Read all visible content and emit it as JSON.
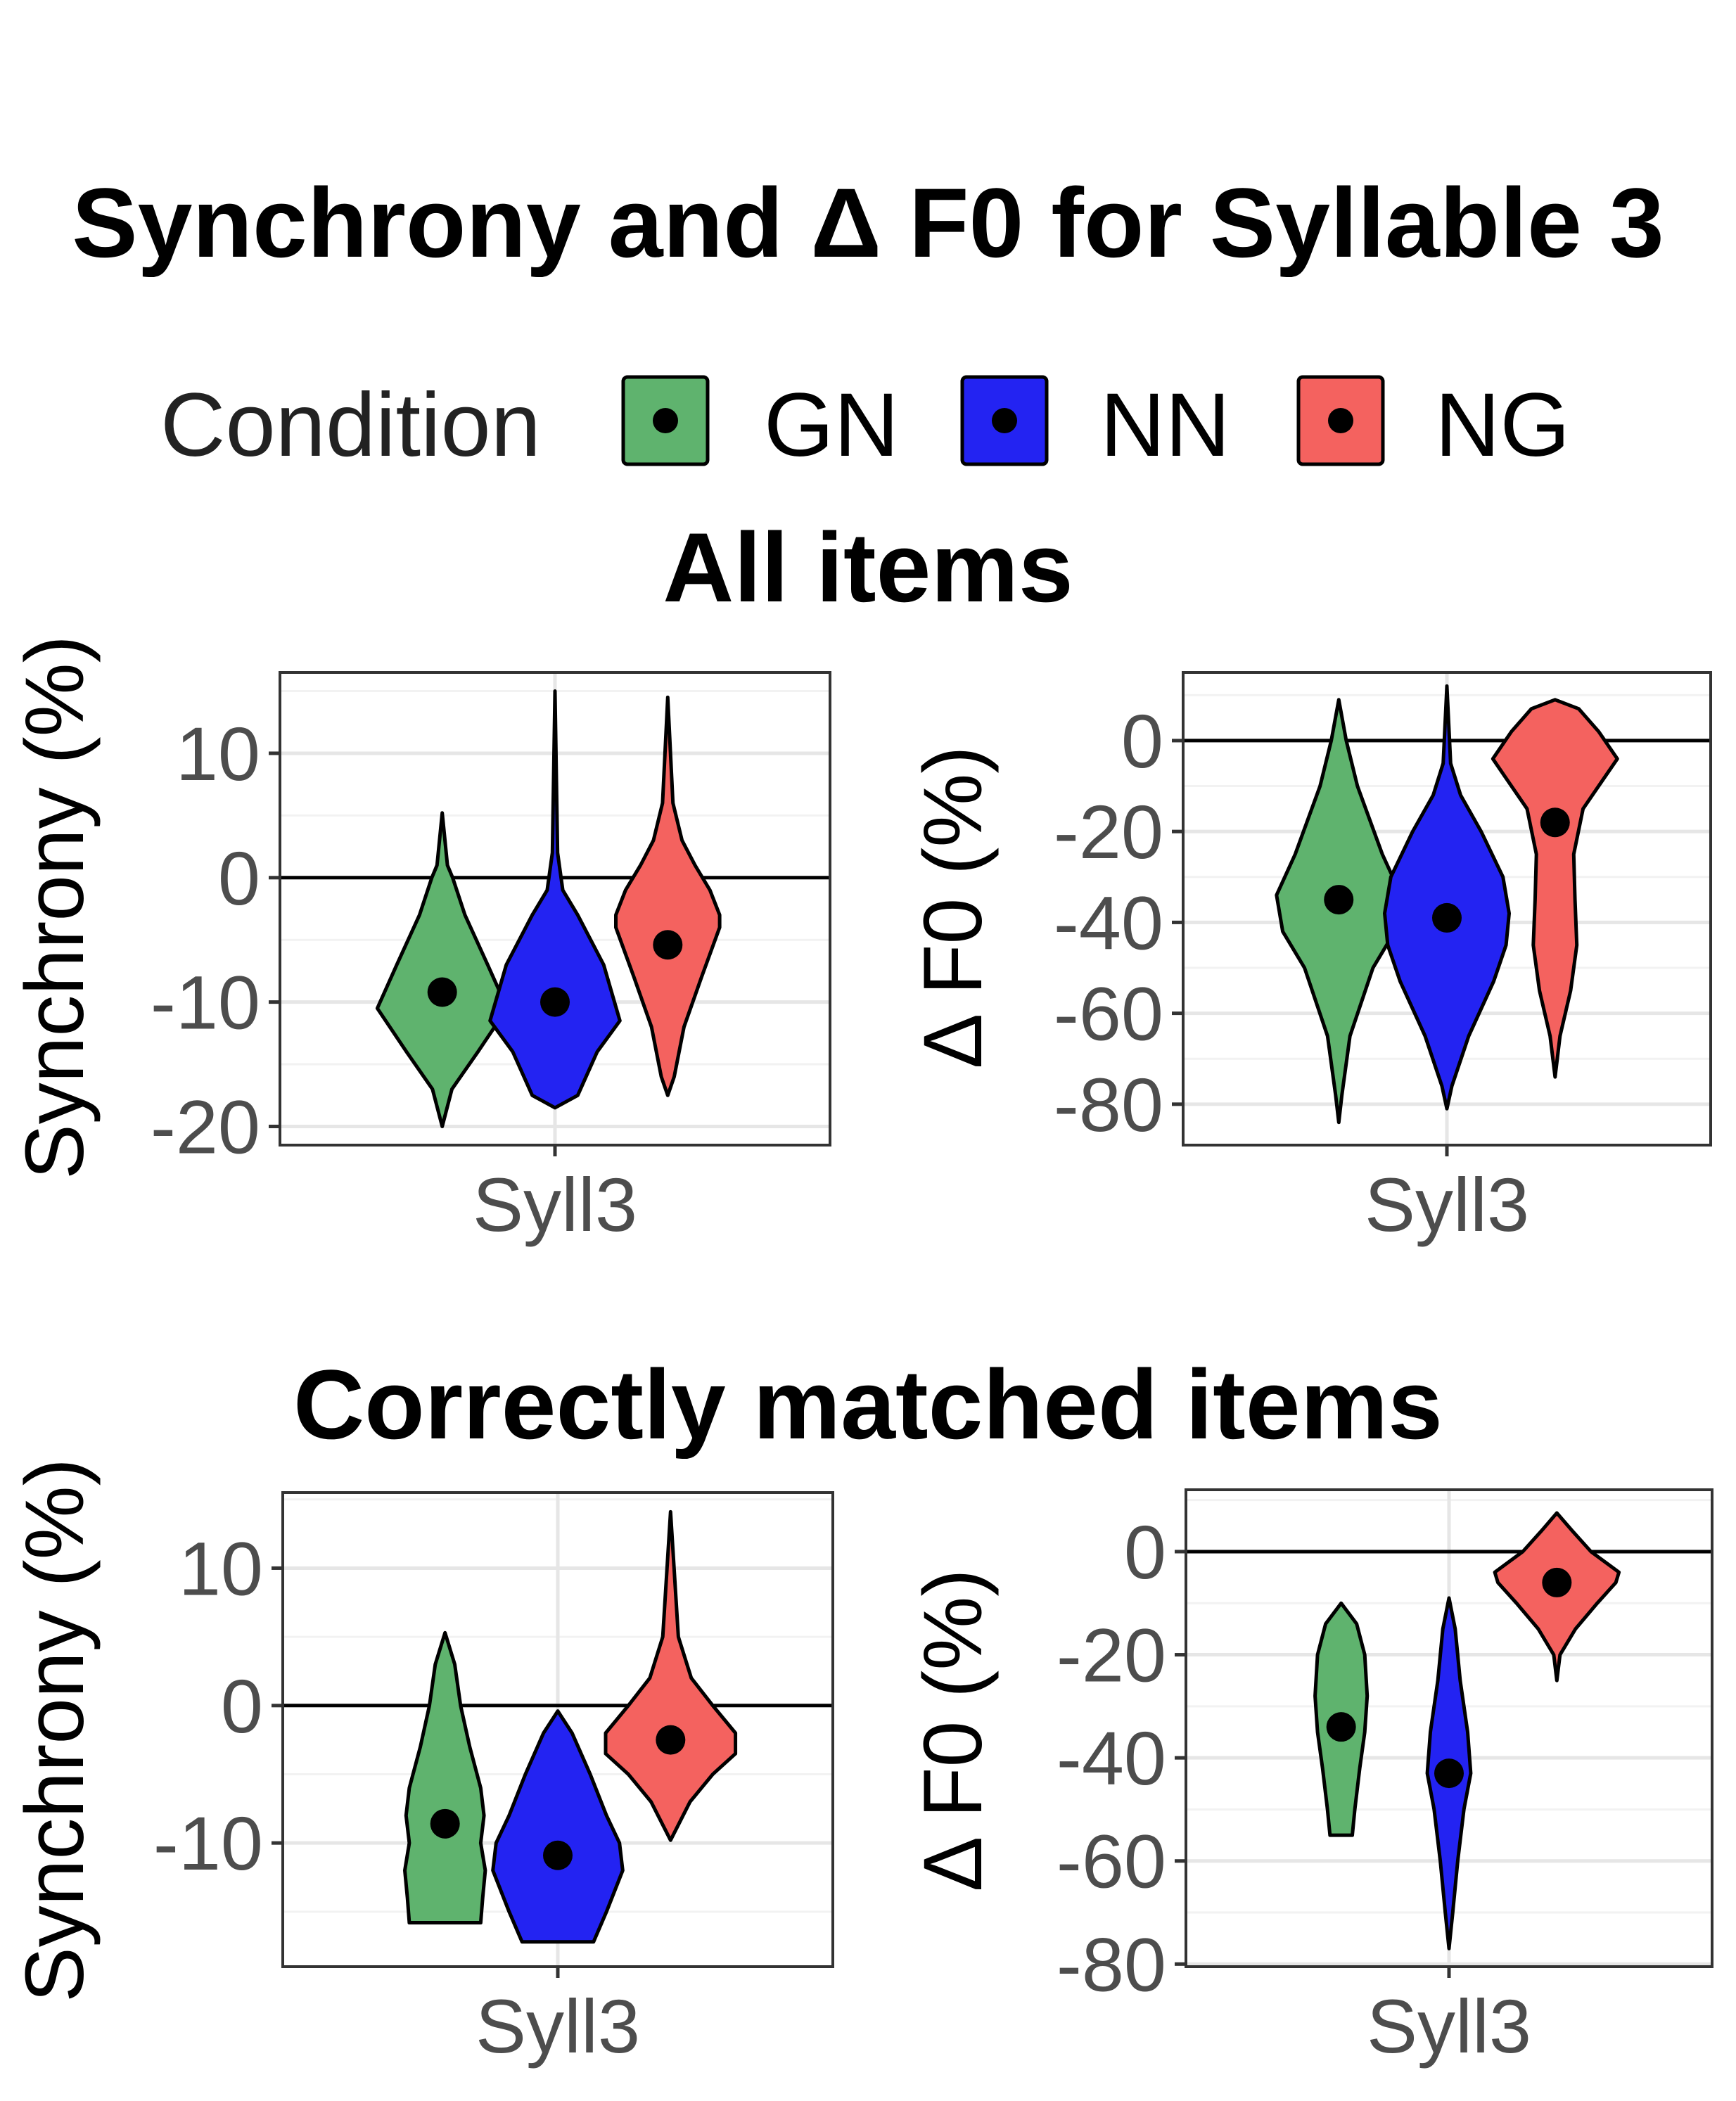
{
  "figure": {
    "title": "Synchrony and Δ F0 for Syllable 3",
    "section_all": "All items",
    "section_correct": "Correctly matched items"
  },
  "legend": {
    "title": "Condition",
    "entries": [
      {
        "label": "GN",
        "color": "#5fb36e"
      },
      {
        "label": "NN",
        "color": "#2323f2"
      },
      {
        "label": "NG",
        "color": "#f4625f"
      }
    ]
  },
  "chart_data": [
    {
      "type": "violin",
      "panel": "All items",
      "xlabel": "",
      "ylabel": "Synchrony (%)",
      "categories": [
        "Syll3"
      ],
      "ylim": [
        -21.5,
        16.5
      ],
      "yticks": [
        10,
        0,
        -10,
        -20
      ],
      "hline": 0,
      "series": [
        {
          "name": "GN",
          "median": -9.2,
          "min": -20,
          "max": 5.2,
          "profile": [
            [
              -20,
              0
            ],
            [
              -17,
              0.15
            ],
            [
              -14,
              0.55
            ],
            [
              -10.5,
              1
            ],
            [
              -7,
              0.7
            ],
            [
              -3,
              0.35
            ],
            [
              0,
              0.16
            ],
            [
              1,
              0.08
            ],
            [
              5.2,
              0
            ]
          ]
        },
        {
          "name": "NN",
          "median": -10,
          "min": -18.5,
          "max": 15,
          "profile": [
            [
              -18.5,
              0
            ],
            [
              -17.5,
              0.35
            ],
            [
              -14,
              0.65
            ],
            [
              -11.5,
              1
            ],
            [
              -7,
              0.75
            ],
            [
              -3,
              0.35
            ],
            [
              -1,
              0.12
            ],
            [
              2,
              0.04
            ],
            [
              15,
              0
            ]
          ]
        },
        {
          "name": "NG",
          "median": -5.4,
          "min": -17.5,
          "max": 14.5,
          "profile": [
            [
              -17.5,
              0
            ],
            [
              -16,
              0.1
            ],
            [
              -12,
              0.25
            ],
            [
              -8,
              0.52
            ],
            [
              -4,
              0.8
            ],
            [
              -3,
              0.8
            ],
            [
              -1,
              0.65
            ],
            [
              1,
              0.42
            ],
            [
              3,
              0.22
            ],
            [
              6,
              0.08
            ],
            [
              14.5,
              0
            ]
          ]
        }
      ]
    },
    {
      "type": "violin",
      "panel": "All items",
      "xlabel": "",
      "ylabel": "Δ F0 (%)",
      "categories": [
        "Syll3"
      ],
      "ylim": [
        -89,
        15
      ],
      "yticks": [
        0,
        -20,
        -40,
        -60,
        -80
      ],
      "hline": 0,
      "series": [
        {
          "name": "GN",
          "median": -35,
          "min": -84,
          "max": 9,
          "profile": [
            [
              -84,
              0
            ],
            [
              -78,
              0.05
            ],
            [
              -65,
              0.18
            ],
            [
              -50,
              0.55
            ],
            [
              -42,
              0.9
            ],
            [
              -34,
              1
            ],
            [
              -25,
              0.7
            ],
            [
              -10,
              0.3
            ],
            [
              0,
              0.12
            ],
            [
              9,
              0
            ]
          ]
        },
        {
          "name": "NN",
          "median": -39,
          "min": -81,
          "max": 12,
          "profile": [
            [
              -81,
              0
            ],
            [
              -76,
              0.08
            ],
            [
              -65,
              0.35
            ],
            [
              -53,
              0.75
            ],
            [
              -45,
              0.95
            ],
            [
              -38,
              1
            ],
            [
              -30,
              0.9
            ],
            [
              -20,
              0.55
            ],
            [
              -12,
              0.22
            ],
            [
              -5,
              0.06
            ],
            [
              12,
              0
            ]
          ]
        },
        {
          "name": "NG",
          "median": -18,
          "min": -74,
          "max": 9,
          "profile": [
            [
              -74,
              0
            ],
            [
              -65,
              0.08
            ],
            [
              -55,
              0.25
            ],
            [
              -45,
              0.35
            ],
            [
              -35,
              0.32
            ],
            [
              -25,
              0.3
            ],
            [
              -15,
              0.45
            ],
            [
              -8,
              0.8
            ],
            [
              -4,
              1
            ],
            [
              2,
              0.7
            ],
            [
              7,
              0.38
            ],
            [
              9,
              0
            ]
          ]
        }
      ]
    },
    {
      "type": "violin",
      "panel": "Correctly matched items",
      "xlabel": "",
      "ylabel": "Synchrony (%)",
      "categories": [
        "Syll3"
      ],
      "ylim": [
        -19,
        15.5
      ],
      "yticks": [
        10,
        0,
        -10
      ],
      "hline": 0,
      "series": [
        {
          "name": "GN",
          "median": -8.6,
          "min": -15.8,
          "max": 5.3,
          "profile": [
            [
              -15.8,
              0.55
            ],
            [
              -14,
              0.58
            ],
            [
              -12,
              0.62
            ],
            [
              -10,
              0.55
            ],
            [
              -8,
              0.6
            ],
            [
              -6,
              0.55
            ],
            [
              -3,
              0.38
            ],
            [
              0,
              0.24
            ],
            [
              3,
              0.15
            ],
            [
              5.3,
              0
            ]
          ]
        },
        {
          "name": "NN",
          "median": -10.9,
          "min": -17.2,
          "max": -0.4,
          "profile": [
            [
              -17.2,
              0.55
            ],
            [
              -15,
              0.75
            ],
            [
              -12,
              1
            ],
            [
              -10,
              0.95
            ],
            [
              -8,
              0.75
            ],
            [
              -5,
              0.5
            ],
            [
              -2,
              0.22
            ],
            [
              -0.4,
              0
            ]
          ]
        },
        {
          "name": "NG",
          "median": -2.5,
          "min": -9.8,
          "max": 14.1,
          "profile": [
            [
              -9.8,
              0
            ],
            [
              -7,
              0.3
            ],
            [
              -5,
              0.65
            ],
            [
              -3.5,
              1
            ],
            [
              -2,
              1
            ],
            [
              0,
              0.65
            ],
            [
              2,
              0.32
            ],
            [
              5,
              0.12
            ],
            [
              14.1,
              0
            ]
          ]
        }
      ]
    },
    {
      "type": "violin",
      "panel": "Correctly matched items",
      "xlabel": "",
      "ylabel": "Δ F0 (%)",
      "categories": [
        "Syll3"
      ],
      "ylim": [
        -80.5,
        12
      ],
      "yticks": [
        0,
        -20,
        -40,
        -60,
        -80
      ],
      "hline": 0,
      "series": [
        {
          "name": "GN",
          "median": -34,
          "min": -55,
          "max": -10,
          "profile": [
            [
              -55,
              0.18
            ],
            [
              -50,
              0.22
            ],
            [
              -42,
              0.3
            ],
            [
              -35,
              0.38
            ],
            [
              -28,
              0.42
            ],
            [
              -20,
              0.38
            ],
            [
              -14,
              0.25
            ],
            [
              -10,
              0
            ]
          ]
        },
        {
          "name": "NN",
          "median": -43,
          "min": -77,
          "max": -9,
          "profile": [
            [
              -77,
              0
            ],
            [
              -70,
              0.06
            ],
            [
              -60,
              0.14
            ],
            [
              -50,
              0.24
            ],
            [
              -43,
              0.35
            ],
            [
              -35,
              0.3
            ],
            [
              -25,
              0.18
            ],
            [
              -15,
              0.1
            ],
            [
              -9,
              0
            ]
          ]
        },
        {
          "name": "NG",
          "median": -6,
          "min": -25,
          "max": 7.5,
          "profile": [
            [
              -25,
              0
            ],
            [
              -20,
              0.05
            ],
            [
              -15,
              0.3
            ],
            [
              -10,
              0.65
            ],
            [
              -6,
              0.95
            ],
            [
              -4,
              1
            ],
            [
              0,
              0.55
            ],
            [
              4,
              0.25
            ],
            [
              7.5,
              0
            ]
          ]
        }
      ]
    }
  ]
}
